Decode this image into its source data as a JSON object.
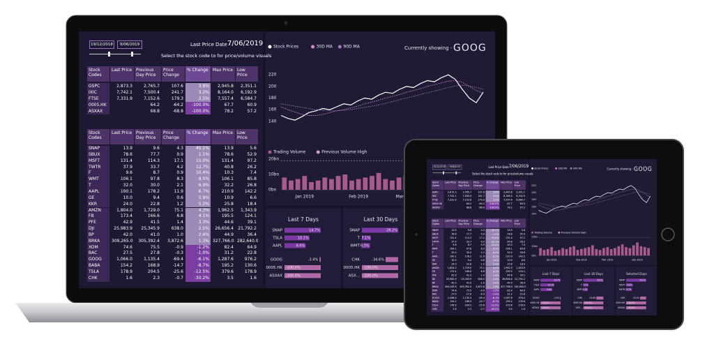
{
  "dashboard": {
    "date_from": "19/12/2018",
    "date_to": "9/06/2019",
    "last_price_date_label": "Last Price Date -",
    "last_price_date": "7/06/2019",
    "instruction": "Select the stock code to for price/volume visuals",
    "table_headers": [
      "Stock Codes",
      "Last Price",
      "Previous Day Price",
      "Price Change",
      "% Change",
      "Max Price",
      "Low Price"
    ],
    "index_table": {
      "rows": [
        [
          "GSPC",
          "2,873.3",
          "2,765.7",
          "107.6",
          "3.9%",
          "2,945.8",
          "2,351.1"
        ],
        [
          "IXIC",
          "7,742.1",
          "7,500.4",
          "241.7",
          "3.2%",
          "8,164.0",
          "6,192.9"
        ],
        [
          "FTSE",
          "7,331.9",
          "7,152.6",
          "179.3",
          "2.5%",
          "7,557.4",
          "6,584.7"
        ],
        [
          "0005.HK",
          null,
          "64.2",
          "-64.2",
          "-100.0%",
          "67.7",
          "60.9"
        ],
        [
          "ASXAX",
          null,
          "68.8",
          "-68.8",
          "-100.0%",
          "78.2",
          "57.2"
        ]
      ]
    },
    "stock_table": {
      "rows": [
        [
          "SNAP",
          "13.9",
          "9.6",
          "4.3",
          "45.1%",
          "13.9",
          "5.6"
        ],
        [
          "SBUX",
          "78.6",
          "77.7",
          "0.9",
          "1.1%",
          "78.6",
          "52.9"
        ],
        [
          "MSFT",
          "131.4",
          "114.3",
          "17.1",
          "15.0%",
          "131.4",
          "97.2"
        ],
        [
          "TWTR",
          "37.9",
          "33.7",
          "4.2",
          "12.7%",
          "40.8",
          "26.2"
        ],
        [
          "F",
          "9.6",
          "8.7",
          "0.9",
          "10.4%",
          "10.3",
          "7.4"
        ],
        [
          "WMT",
          "106.1",
          "97.8",
          "8.3",
          "8.5%",
          "106.1",
          "85.8"
        ],
        [
          "T",
          "32.0",
          "30.0",
          "2.1",
          "6.9%",
          "32.2",
          "26.8"
        ],
        [
          "AAPL",
          "190.1",
          "178.2",
          "11.9",
          "6.7%",
          "210.9",
          "142.2"
        ],
        [
          "GE",
          "10.0",
          "9.4",
          "0.6",
          "5.9%",
          "10.9",
          "6.6"
        ],
        [
          "KKR",
          "24.0",
          "22.8",
          "1.2",
          "5.2%",
          "25.8",
          "18.4"
        ],
        [
          "AMZN",
          "1,804.0",
          "1,729.0",
          "75.1",
          "4.3%",
          "1,962.5",
          "1,343.9"
        ],
        [
          "FB",
          "173.4",
          "166.6",
          "6.8",
          "4.1%",
          "195.5",
          "124.1"
        ],
        [
          "PFE",
          "42.9",
          "41.5",
          "1.4",
          "3.3%",
          "44.6",
          "39.1"
        ],
        [
          "DJI",
          "25,983.9",
          "25,345.9",
          "638.0",
          "2.5%",
          "26,656.4",
          "21,792.2"
        ],
        [
          "BP",
          "42.0",
          "41.0",
          "1.0",
          "2.4%",
          "44.9",
          "36.4"
        ],
        [
          "BRKA",
          "309,265.0",
          "305,392.4",
          "3,872.6",
          "1.3%",
          "327,766.0",
          "282,640.0"
        ],
        [
          "XOM",
          "74.6",
          "75.5",
          "-0.9",
          "-1.2%",
          "82.4",
          "64.9"
        ],
        [
          "BAC",
          "27.5",
          "27.8",
          "-0.3",
          "-1.0%",
          "31.2",
          "22.8"
        ],
        [
          "GOOG",
          "1,066.0",
          "1,135.4",
          "-69.4",
          "-6.1%",
          "1,287.6",
          "976.2"
        ],
        [
          "BABA",
          "154.2",
          "168.9",
          "-14.7",
          "-8.7%",
          "195.2",
          "130.6"
        ],
        [
          "TSLA",
          "178.9",
          "204.5",
          "-25.6",
          "-12.5%",
          "379.6",
          "178.9"
        ],
        [
          "CHK",
          "1.6",
          "2.3",
          "-0.7",
          "-30.2%",
          "3.5",
          "1.6"
        ]
      ]
    }
  },
  "chart_data": [
    {
      "type": "line",
      "title": "Currently showing -",
      "subtitle": "GOOG",
      "xlim": [
        0,
        29
      ],
      "ylim": [
        135,
        225
      ],
      "yticks": [
        140,
        160,
        180,
        200,
        220
      ],
      "grid": false,
      "series": [
        {
          "name": "Stock Prices",
          "color": "#ffffff",
          "style": "solid",
          "values": [
            150,
            145,
            142,
            148,
            155,
            158,
            162,
            160,
            165,
            170,
            168,
            175,
            180,
            178,
            185,
            190,
            188,
            195,
            200,
            198,
            205,
            210,
            208,
            215,
            220,
            212,
            195,
            180,
            172,
            190
          ]
        },
        {
          "name": "30D MA",
          "color": "#d48ad6",
          "style": "dotted",
          "values": [
            165,
            160,
            156,
            152,
            150,
            150,
            152,
            155,
            158,
            160,
            163,
            166,
            170,
            173,
            176,
            180,
            183,
            186,
            190,
            193,
            196,
            200,
            203,
            206,
            209,
            210,
            207,
            200,
            193,
            188
          ]
        },
        {
          "name": "90D MA",
          "color": "#a27bbd",
          "style": "dotted",
          "values": [
            170,
            168,
            166,
            164,
            162,
            160,
            159,
            158,
            158,
            159,
            160,
            162,
            164,
            166,
            168,
            171,
            174,
            177,
            180,
            183,
            186,
            189,
            192,
            195,
            198,
            201,
            202,
            201,
            198,
            195
          ]
        }
      ]
    },
    {
      "type": "bar",
      "ylim": [
        0,
        20
      ],
      "yticks": [
        {
          "value": 0,
          "label": "0bn"
        },
        {
          "value": 10,
          "label": "10bn"
        },
        {
          "value": 20,
          "label": "20bn"
        }
      ],
      "xticks": [
        {
          "value": 3,
          "label": "Jan 2019"
        },
        {
          "value": 11,
          "label": "Feb 2019"
        },
        {
          "value": 18,
          "label": "Mar 2019"
        },
        {
          "value": 26,
          "label": "Apr 2019"
        }
      ],
      "series": [
        {
          "name": "Trading Volume",
          "color": "#a85b8f",
          "values": [
            8,
            6,
            7,
            9,
            5,
            6,
            8,
            7,
            9,
            10,
            6,
            7,
            8,
            9,
            11,
            7,
            6,
            8,
            9,
            7,
            8,
            10,
            12,
            9,
            8,
            11,
            14,
            10,
            9,
            8
          ]
        }
      ],
      "reference_lines": [
        {
          "name": "Previous Volume High",
          "color": "#c9a0d0",
          "value": 19
        }
      ]
    },
    {
      "type": "hbar",
      "title": "Last 7 Days",
      "categories": [
        "SNAP",
        "TSLA",
        "AAPL",
        "GOOG",
        "0005.HK",
        "ASXAX"
      ],
      "values": [
        14.7,
        10.1,
        8.6,
        -3.4,
        -100.0,
        -100.0
      ],
      "value_labels": [
        "14.7%",
        "10.1%",
        "8.6%",
        "-3.4%",
        "-100.0%",
        "-100.0%"
      ],
      "colors": {
        "positive": "#7b3aa3",
        "negative": "#b06aa8"
      }
    },
    {
      "type": "hbar",
      "title": "Last 30 Days",
      "categories": [
        "SNAP",
        "T",
        "WMT",
        "CHK",
        "0005.HK",
        "ASX..."
      ],
      "values": [
        28.2,
        7.1,
        6.3,
        -34.6,
        -100.0,
        -100.0
      ],
      "value_labels": [
        "28.2%",
        "7.1%",
        "6.3%",
        "-34.6%",
        "-100.0%",
        "-100.0%"
      ],
      "colors": {
        "positive": "#7b3aa3",
        "negative": "#b06aa8"
      }
    },
    {
      "type": "hbar",
      "title": "Selected Days",
      "categories": [
        "SNAP",
        "MSFT",
        "TWTR",
        "CHK",
        "0005.HK",
        "ASXAX"
      ],
      "values": [
        45.1,
        15.0,
        12.7,
        -30.2,
        -100.0,
        -100.0
      ],
      "value_labels": [
        "45.1%",
        "15.0%",
        "12.7%",
        "-30.2%",
        "-100.0%",
        "-100.0%"
      ],
      "colors": {
        "positive": "#7b3aa3",
        "negative": "#b06aa8"
      }
    }
  ]
}
